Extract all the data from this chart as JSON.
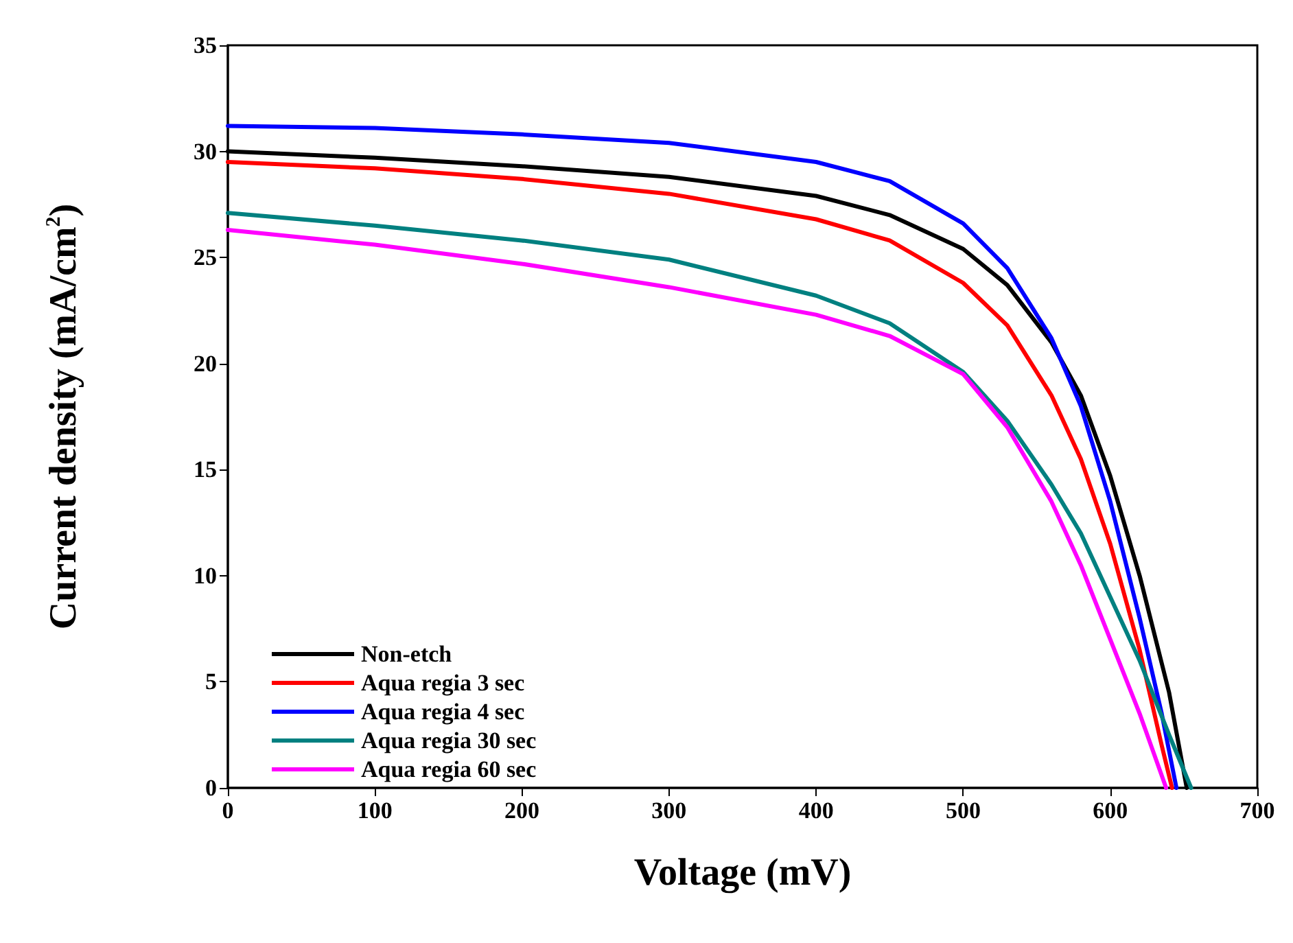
{
  "chart_data": {
    "type": "line",
    "xlabel": "Voltage (mV)",
    "ylabel": "Current density (mA/cm$^{2}$)",
    "xlim": [
      0,
      700
    ],
    "xticks": [
      0,
      100,
      200,
      300,
      400,
      500,
      600,
      700
    ],
    "ylim": [
      0,
      35
    ],
    "yticks": [
      0,
      5,
      10,
      15,
      20,
      25,
      30,
      35
    ],
    "grid": false,
    "legend": "bottom left",
    "marker": "none",
    "line_style": "solid",
    "x": [
      0,
      100,
      200,
      300,
      400,
      450,
      500,
      530,
      560,
      580,
      600,
      620,
      640,
      652
    ],
    "series": [
      {
        "name": "Non-etch",
        "color": "#000000",
        "values": [
          30.0,
          29.7,
          29.3,
          28.8,
          27.9,
          27.0,
          25.4,
          23.7,
          21.0,
          18.5,
          14.7,
          10.0,
          4.5,
          0
        ]
      },
      {
        "name": "Aqua regia 3 sec",
        "color": "#ff0000",
        "x": [
          0,
          100,
          200,
          300,
          400,
          450,
          500,
          530,
          560,
          580,
          600,
          620,
          635,
          642
        ],
        "values": [
          29.5,
          29.2,
          28.7,
          28.0,
          26.8,
          25.8,
          23.8,
          21.8,
          18.5,
          15.5,
          11.5,
          6.5,
          2.0,
          0
        ]
      },
      {
        "name": "Aqua regia 4 sec",
        "color": "#0000ff",
        "x": [
          0,
          100,
          200,
          300,
          400,
          450,
          500,
          530,
          560,
          580,
          600,
          620,
          635,
          645
        ],
        "values": [
          31.2,
          31.1,
          30.8,
          30.4,
          29.5,
          28.6,
          26.6,
          24.5,
          21.2,
          18.0,
          13.5,
          8.0,
          3.5,
          0
        ]
      },
      {
        "name": "Aqua regia 30 sec",
        "color": "#008080",
        "x": [
          0,
          100,
          200,
          300,
          400,
          450,
          500,
          530,
          560,
          580,
          600,
          620,
          640,
          655
        ],
        "values": [
          27.1,
          26.5,
          25.8,
          24.9,
          23.2,
          21.9,
          19.6,
          17.3,
          14.3,
          12.0,
          9.0,
          6.0,
          2.5,
          0
        ]
      },
      {
        "name": "Aqua regia 60 sec",
        "color": "#ff00ff",
        "x": [
          0,
          100,
          200,
          300,
          400,
          450,
          500,
          530,
          560,
          580,
          600,
          620,
          638
        ],
        "values": [
          26.3,
          25.6,
          24.7,
          23.6,
          22.3,
          21.3,
          19.5,
          17.0,
          13.5,
          10.5,
          7.0,
          3.5,
          0
        ]
      }
    ]
  }
}
